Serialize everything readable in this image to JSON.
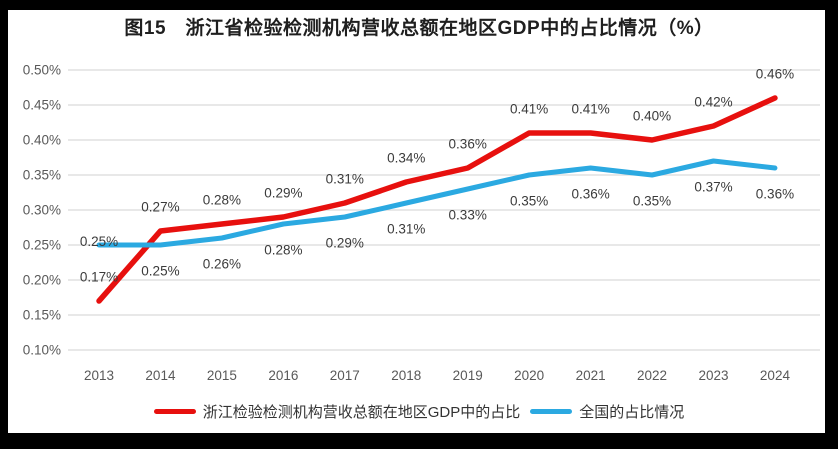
{
  "title": "图15　浙江省检验检测机构营收总额在地区GDP中的占比情况（%）",
  "colors": {
    "frame": "#000000",
    "background": "#ffffff",
    "gridline": "#d9d9d9",
    "axis_text": "#595959",
    "data_label_text": "#3b3b3b",
    "title_text": "#1f1f1f",
    "zhejiang_line": "#e7100e",
    "national_line": "#2ba9e1"
  },
  "chart_data": {
    "type": "line",
    "title": "图15　浙江省检验检测机构营收总额在地区GDP中的占比情况（%）",
    "xlabel": "",
    "ylabel": "",
    "x": [
      "2013",
      "2014",
      "2015",
      "2016",
      "2017",
      "2018",
      "2019",
      "2020",
      "2021",
      "2022",
      "2023",
      "2024"
    ],
    "ylim": [
      0.1,
      0.5
    ],
    "ytick_values": [
      0.1,
      0.15,
      0.2,
      0.25,
      0.3,
      0.35,
      0.4,
      0.45,
      0.5
    ],
    "ytick_labels": [
      "0.10%",
      "0.15%",
      "0.20%",
      "0.25%",
      "0.30%",
      "0.35%",
      "0.40%",
      "0.45%",
      "0.50%"
    ],
    "grid": true,
    "legend_position": "bottom",
    "series": [
      {
        "name": "浙江检验检测机构营收总额在地区GDP中的占比",
        "color": "#e7100e",
        "values": [
          0.17,
          0.27,
          0.28,
          0.29,
          0.31,
          0.34,
          0.36,
          0.41,
          0.41,
          0.4,
          0.42,
          0.46
        ],
        "labels": [
          "0.17%",
          "0.27%",
          "0.28%",
          "0.29%",
          "0.31%",
          "0.34%",
          "0.36%",
          "0.41%",
          "0.41%",
          "0.40%",
          "0.42%",
          "0.46%"
        ],
        "label_side": "above"
      },
      {
        "name": "全国的占比情况",
        "color": "#2ba9e1",
        "values": [
          0.25,
          0.25,
          0.26,
          0.28,
          0.29,
          0.31,
          0.33,
          0.35,
          0.36,
          0.35,
          0.37,
          0.36
        ],
        "labels": [
          "0.25%",
          "0.25%",
          "0.26%",
          "0.28%",
          "0.29%",
          "0.31%",
          "0.33%",
          "0.35%",
          "0.36%",
          "0.35%",
          "0.37%",
          "0.36%"
        ],
        "label_side": "below",
        "label_side_overrides": {
          "0": "tight-above"
        }
      }
    ]
  }
}
